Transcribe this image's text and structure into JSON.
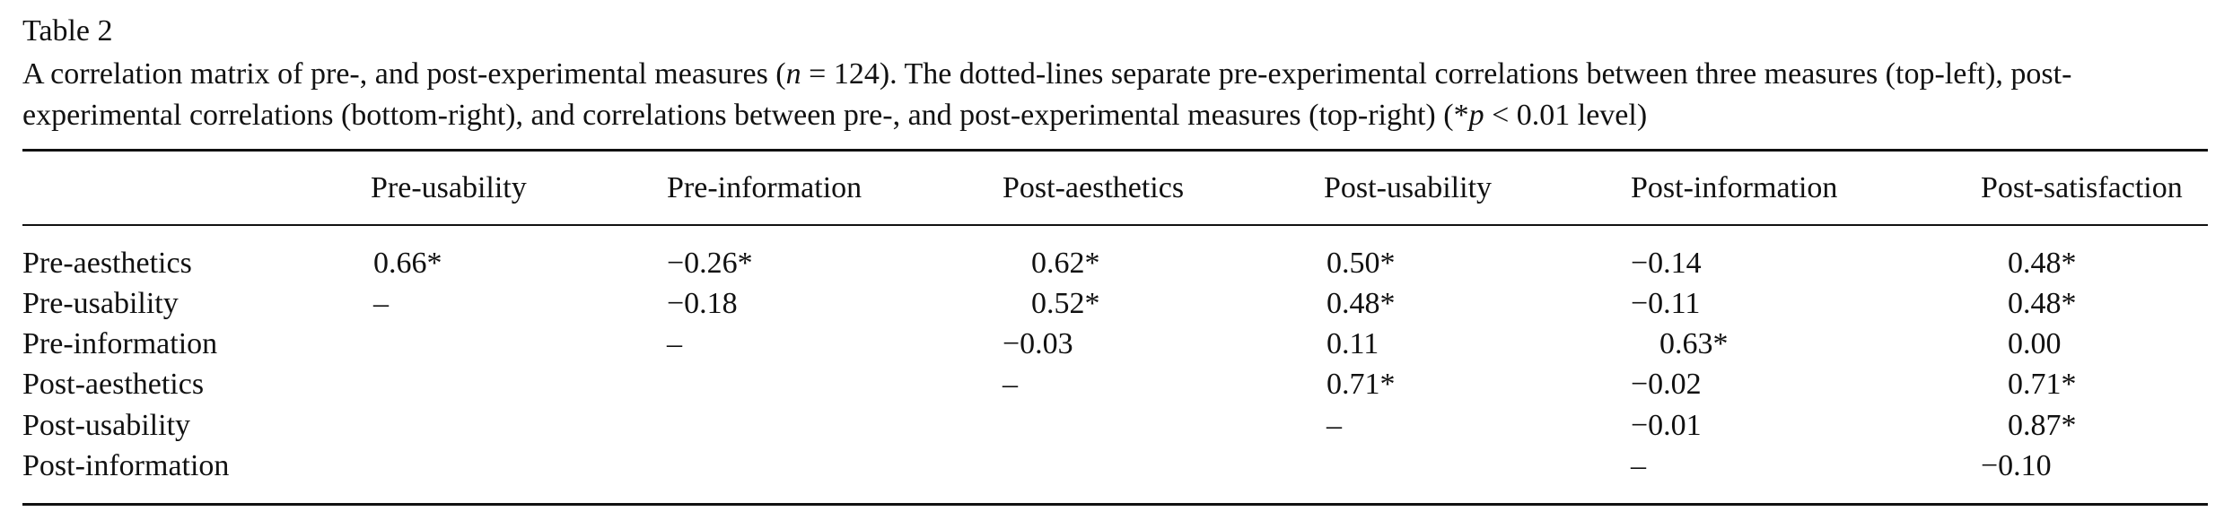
{
  "table": {
    "label": "Table 2",
    "caption": {
      "part1": "A correlation matrix of pre-, and post-experimental measures (",
      "n_symbol": "n",
      "part2": " = 124). The dotted-lines separate pre-experimental correlations between three measures (top-left), post-experimental correlations (bottom-right), and correlations between pre-, and post-experimental measures (top-right) (*",
      "p_symbol": "p",
      "part3": " < 0.01 level)"
    },
    "columns": [
      "Pre-usability",
      "Pre-information",
      "Post-aesthetics",
      "Post-usability",
      "Post-information",
      "Post-satisfaction"
    ],
    "rows": [
      {
        "label": "Pre-aesthetics",
        "cells": [
          "0.66*",
          "−0.26*",
          "0.62*",
          "0.50*",
          "−0.14",
          "0.48*"
        ]
      },
      {
        "label": "Pre-usability",
        "cells": [
          "–",
          "−0.18",
          "0.52*",
          "0.48*",
          "−0.11",
          "0.48*"
        ]
      },
      {
        "label": "Pre-information",
        "cells": [
          "",
          "–",
          "−0.03",
          "0.11",
          "0.63*",
          "0.00"
        ]
      },
      {
        "label": "Post-aesthetics",
        "cells": [
          "",
          "",
          "–",
          "0.71*",
          "−0.02",
          "0.71*"
        ]
      },
      {
        "label": "Post-usability",
        "cells": [
          "",
          "",
          "",
          "–",
          "−0.01",
          "0.87*"
        ]
      },
      {
        "label": "Post-information",
        "cells": [
          "",
          "",
          "",
          "",
          "–",
          "−0.10"
        ]
      }
    ]
  }
}
